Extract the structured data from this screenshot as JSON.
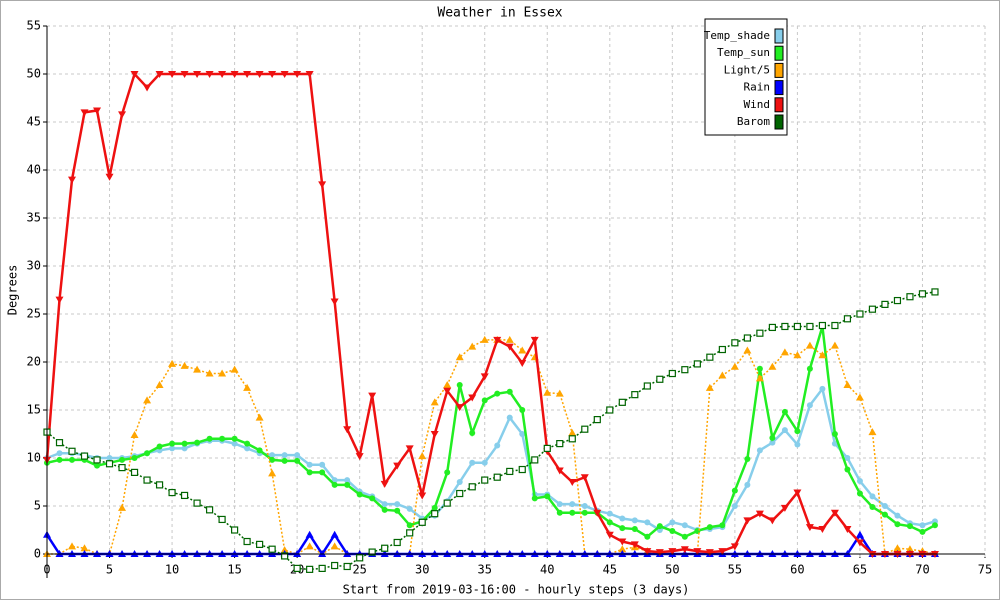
{
  "chart_data": {
    "type": "line",
    "title": "Weather in Essex",
    "x_label": "Start from 2019-03-16:00 - hourly steps (3 days)",
    "y_label": "Degrees",
    "x": [
      0,
      1,
      2,
      3,
      4,
      5,
      6,
      7,
      8,
      9,
      10,
      11,
      12,
      13,
      14,
      15,
      16,
      17,
      18,
      19,
      20,
      21,
      22,
      23,
      24,
      25,
      26,
      27,
      28,
      29,
      30,
      31,
      32,
      33,
      34,
      35,
      36,
      37,
      38,
      39,
      40,
      41,
      42,
      43,
      44,
      45,
      46,
      47,
      48,
      49,
      50,
      51,
      52,
      53,
      54,
      55,
      56,
      57,
      58,
      59,
      60,
      61,
      62,
      63,
      64,
      65,
      66,
      67,
      68,
      69,
      70,
      71
    ],
    "xlim": [
      0,
      75
    ],
    "xticks": [
      0,
      5,
      10,
      15,
      20,
      25,
      30,
      35,
      40,
      45,
      50,
      55,
      60,
      65,
      70,
      75
    ],
    "ylim": [
      0,
      55
    ],
    "yticks": [
      0,
      5,
      10,
      15,
      20,
      25,
      30,
      35,
      40,
      45,
      50,
      55
    ],
    "grid": true,
    "legend": "top-right",
    "series": [
      {
        "name": "Temp_shade",
        "color": "#87ceeb",
        "marker": "circle",
        "dash": "solid",
        "values": [
          10,
          10.5,
          10.5,
          10.3,
          10,
          10,
          10,
          10.2,
          10.5,
          10.8,
          11,
          11,
          11.5,
          11.8,
          11.8,
          11.5,
          11,
          10.5,
          10.3,
          10.3,
          10.3,
          9.3,
          9.3,
          7.7,
          7.7,
          6.5,
          6,
          5.2,
          5.2,
          4.7,
          3.7,
          4,
          5.5,
          7.5,
          9.5,
          9.5,
          11.3,
          14.2,
          12.5,
          6.2,
          6.2,
          5.2,
          5.2,
          5,
          4.5,
          4.2,
          3.7,
          3.5,
          3.3,
          2.5,
          3.3,
          3,
          2.5,
          2.6,
          2.8,
          5,
          7.2,
          10.8,
          11.6,
          12.9,
          11.4,
          15.5,
          17.2,
          11.5,
          10,
          7.6,
          6,
          5,
          4,
          3.2,
          3,
          3.4
        ]
      },
      {
        "name": "Temp_sun",
        "color": "#22ee22",
        "marker": "circle",
        "dash": "solid",
        "values": [
          9.5,
          9.8,
          9.8,
          9.8,
          9.2,
          9.5,
          9.8,
          10,
          10.5,
          11.2,
          11.5,
          11.5,
          11.6,
          12,
          12,
          12,
          11.5,
          10.8,
          9.8,
          9.7,
          9.7,
          8.5,
          8.5,
          7.2,
          7.2,
          6.2,
          5.8,
          4.6,
          4.5,
          3,
          3.4,
          4.8,
          8.5,
          17.6,
          12.6,
          16,
          16.7,
          16.9,
          15,
          5.8,
          6,
          4.3,
          4.3,
          4.3,
          4.3,
          3.3,
          2.7,
          2.6,
          1.8,
          2.9,
          2.4,
          1.8,
          2.4,
          2.8,
          3,
          6.6,
          9.9,
          19.3,
          12.1,
          14.8,
          12.8,
          19.3,
          23.7,
          12.5,
          8.8,
          6.3,
          4.9,
          4.1,
          3.1,
          2.9,
          2.3,
          3
        ]
      },
      {
        "name": "Light/5",
        "color": "#ffa500",
        "marker": "triangle-up",
        "dash": "dotted",
        "values": [
          0,
          0,
          0.8,
          0.6,
          0,
          0,
          4.8,
          12.4,
          16,
          17.6,
          19.8,
          19.6,
          19.2,
          18.8,
          18.8,
          19.2,
          17.3,
          14.2,
          8.4,
          0.4,
          0,
          0.8,
          0,
          0.8,
          0,
          0,
          0,
          0,
          0,
          0,
          10.2,
          15.8,
          17.6,
          20.5,
          21.6,
          22.3,
          22.3,
          22.3,
          21.2,
          20.5,
          16.8,
          16.7,
          12.6,
          0,
          0,
          0,
          0.5,
          0.7,
          0.3,
          0,
          0,
          0,
          0,
          17.3,
          18.6,
          19.5,
          21.2,
          18.3,
          19.5,
          21,
          20.7,
          21.7,
          20.7,
          21.7,
          17.6,
          16.3,
          12.7,
          0,
          0.6,
          0.5,
          0.3,
          0
        ]
      },
      {
        "name": "Rain",
        "color": "#0000ff",
        "marker": "triangle-up",
        "dash": "solid",
        "values": [
          2,
          0,
          0,
          0,
          0,
          0,
          0,
          0,
          0,
          0,
          0,
          0,
          0,
          0,
          0,
          0,
          0,
          0,
          0,
          0,
          0,
          2,
          0,
          2,
          0,
          0,
          0,
          0,
          0,
          0,
          0,
          0,
          0,
          0,
          0,
          0,
          0,
          0,
          0,
          0,
          0,
          0,
          0,
          0,
          0,
          0,
          0,
          0,
          0,
          0,
          0,
          0,
          0,
          0,
          0,
          0,
          0,
          0,
          0,
          0,
          0,
          0,
          0,
          0,
          0,
          2,
          0,
          0,
          0,
          0,
          0,
          0
        ]
      },
      {
        "name": "Wind",
        "color": "#ee1111",
        "marker": "triangle-down",
        "dash": "solid",
        "values": [
          9.8,
          26.5,
          39,
          46,
          46.2,
          39.3,
          45.8,
          50,
          48.6,
          50,
          50,
          50,
          50,
          50,
          50,
          50,
          50,
          50,
          50,
          50,
          50,
          50,
          38.5,
          26.3,
          13,
          10.2,
          16.5,
          7.3,
          9.2,
          11,
          6.1,
          12.5,
          17,
          15.3,
          16.3,
          18.5,
          22.3,
          21.6,
          19.9,
          22.3,
          10.7,
          8.7,
          7.5,
          8,
          4.3,
          2,
          1.3,
          1,
          0.3,
          0.2,
          0.3,
          0.5,
          0.3,
          0.2,
          0.3,
          0.8,
          3.5,
          4.2,
          3.5,
          4.8,
          6.4,
          2.8,
          2.6,
          4.3,
          2.6,
          1.2,
          0,
          0,
          0,
          0,
          0,
          0
        ]
      },
      {
        "name": "Barom",
        "color": "#006400",
        "marker": "square-open",
        "dash": "dotted",
        "values": [
          12.7,
          11.6,
          10.7,
          10.2,
          9.8,
          9.4,
          9,
          8.5,
          7.7,
          7.2,
          6.4,
          6.1,
          5.3,
          4.6,
          3.6,
          2.5,
          1.3,
          1,
          0.5,
          -0.2,
          -1.5,
          -1.6,
          -1.5,
          -1.2,
          -1.3,
          -0.4,
          0.2,
          0.6,
          1.2,
          2.2,
          3.3,
          4.2,
          5.3,
          6.3,
          7,
          7.7,
          8,
          8.6,
          8.8,
          9.8,
          11,
          11.5,
          12,
          13,
          14,
          15,
          15.8,
          16.6,
          17.5,
          18.2,
          18.8,
          19.2,
          19.8,
          20.5,
          21.3,
          22,
          22.5,
          23,
          23.6,
          23.7,
          23.7,
          23.7,
          23.8,
          23.8,
          24.5,
          25,
          25.5,
          26,
          26.4,
          26.8,
          27.1,
          27.3
        ]
      }
    ]
  }
}
